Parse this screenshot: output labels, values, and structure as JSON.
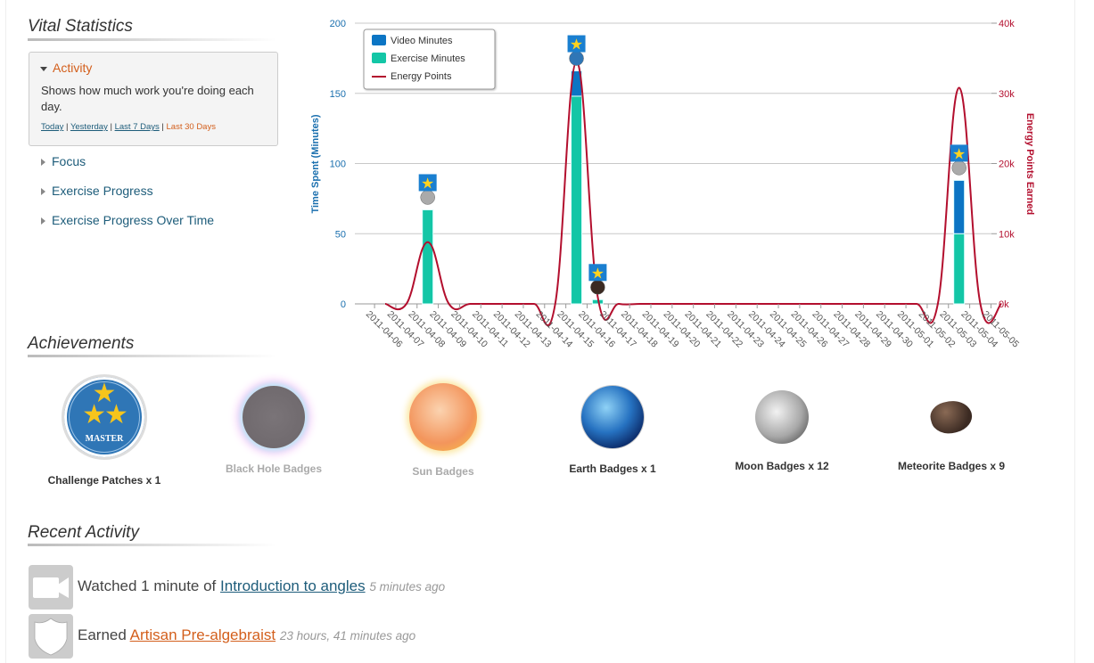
{
  "vital": {
    "title": "Vital Statistics",
    "active": {
      "label": "Activity",
      "description": "Shows how much work you're doing each day.",
      "ranges": [
        "Today",
        "Yesterday",
        "Last 7 Days",
        "Last 30 Days"
      ],
      "selected_range": "Last 30 Days"
    },
    "items": [
      {
        "label": "Focus"
      },
      {
        "label": "Exercise Progress"
      },
      {
        "label": "Exercise Progress Over Time"
      }
    ]
  },
  "chart_data": {
    "type": "bar",
    "categories": [
      "2011-04-06",
      "2011-04-07",
      "2011-04-08",
      "2011-04-09",
      "2011-04-10",
      "2011-04-11",
      "2011-04-12",
      "2011-04-13",
      "2011-04-14",
      "2011-04-15",
      "2011-04-16",
      "2011-04-17",
      "2011-04-18",
      "2011-04-19",
      "2011-04-20",
      "2011-04-21",
      "2011-04-22",
      "2011-04-23",
      "2011-04-24",
      "2011-04-25",
      "2011-04-26",
      "2011-04-27",
      "2011-04-28",
      "2011-04-29",
      "2011-04-30",
      "2011-05-01",
      "2011-05-02",
      "2011-05-03",
      "2011-05-04",
      "2011-05-05"
    ],
    "series": [
      {
        "name": "Video Minutes",
        "type": "bar",
        "color": "#0b75c4",
        "values": [
          0,
          0,
          0,
          0,
          0,
          0,
          0,
          0,
          0,
          18,
          0,
          0,
          0,
          0,
          0,
          0,
          0,
          0,
          0,
          0,
          0,
          0,
          0,
          0,
          0,
          0,
          0,
          38,
          0,
          0
        ]
      },
      {
        "name": "Exercise Minutes",
        "type": "bar",
        "color": "#13c6a6",
        "values": [
          0,
          0,
          67,
          0,
          0,
          0,
          0,
          0,
          0,
          148,
          3,
          0,
          0,
          0,
          0,
          0,
          0,
          0,
          0,
          0,
          0,
          0,
          0,
          0,
          0,
          0,
          0,
          50,
          0,
          0
        ]
      },
      {
        "name": "Energy Points",
        "type": "line",
        "color": "#b30f2e",
        "values": [
          0,
          0,
          8800,
          0,
          0,
          0,
          0,
          0,
          0,
          34500,
          1000,
          0,
          0,
          0,
          0,
          0,
          0,
          0,
          0,
          0,
          0,
          0,
          0,
          0,
          0,
          0,
          0,
          30800,
          0,
          0
        ]
      }
    ],
    "ylabel": "Time Spent (Minutes)",
    "ylim": [
      0,
      200
    ],
    "yticks": [
      "0",
      "50",
      "100",
      "150",
      "200"
    ],
    "y2label": "Energy Points Earned",
    "y2lim": [
      0,
      40000
    ],
    "y2ticks": [
      "0k",
      "10k",
      "20k",
      "30k",
      "40k"
    ],
    "legend": "top-left",
    "grid": true,
    "markers": [
      {
        "date": "2011-04-08",
        "badges": [
          "star",
          "moon"
        ]
      },
      {
        "date": "2011-04-15",
        "badges": [
          "star",
          "challenge"
        ]
      },
      {
        "date": "2011-04-16",
        "badges": [
          "star",
          "meteorite"
        ]
      },
      {
        "date": "2011-05-03",
        "badges": [
          "star",
          "moon"
        ]
      }
    ]
  },
  "achievements": {
    "title": "Achievements",
    "items": [
      {
        "label": "Challenge Patches x 1",
        "icon": "challenge-patch-icon",
        "patch_text": "MASTER"
      },
      {
        "label": "Black Hole Badges",
        "icon": "black-hole-icon"
      },
      {
        "label": "Sun Badges",
        "icon": "sun-icon"
      },
      {
        "label": "Earth Badges x 1",
        "icon": "earth-icon"
      },
      {
        "label": "Moon Badges x 12",
        "icon": "moon-icon"
      },
      {
        "label": "Meteorite Badges x 9",
        "icon": "meteorite-icon"
      }
    ]
  },
  "recent": {
    "title": "Recent Activity",
    "items": [
      {
        "prefix": "Watched 1 minute of",
        "link": "Introduction to angles",
        "time": "5 minutes ago",
        "link_color": "#1d5c7a"
      },
      {
        "prefix": "Earned",
        "link": "Artisan Pre-algebraist",
        "time": "23 hours, 41 minutes ago",
        "link_color": "#d35f1c"
      }
    ]
  }
}
